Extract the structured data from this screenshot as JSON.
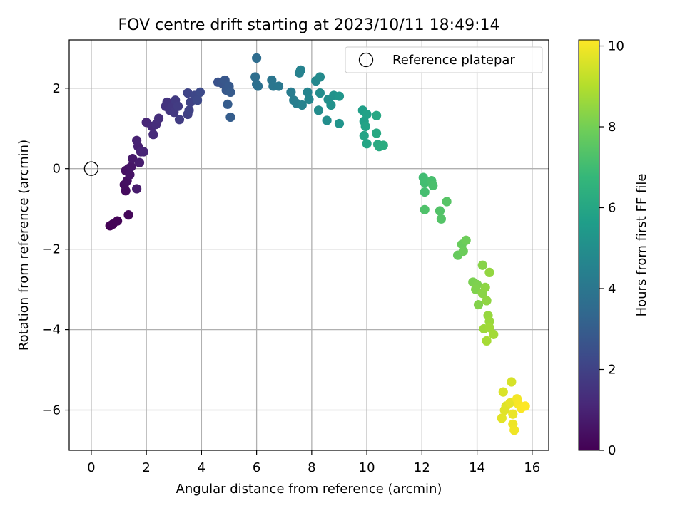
{
  "chart_data": {
    "type": "scatter",
    "title": "FOV centre drift starting at 2023/10/11 18:49:14",
    "xlabel": "Angular distance from reference (arcmin)",
    "ylabel": "Rotation from reference (arcmin)",
    "xlim": [
      -0.8,
      16.6
    ],
    "ylim": [
      -7.0,
      3.2
    ],
    "xticks": [
      0,
      2,
      4,
      6,
      8,
      10,
      12,
      14,
      16
    ],
    "yticks": [
      -6,
      -4,
      -2,
      0,
      2
    ],
    "grid": true,
    "legend": {
      "position": "top-right",
      "entries": [
        "Reference platepar"
      ]
    },
    "reference_point": {
      "x": 0,
      "y": 0,
      "label": "Reference platepar"
    },
    "colorbar": {
      "label": "Hours from first FF file",
      "colormap": "viridis",
      "range": [
        0,
        10.15
      ],
      "ticks": [
        0,
        2,
        4,
        6,
        8,
        10
      ]
    },
    "points": [
      {
        "x": 0.68,
        "y": -1.42,
        "c": 0.0
      },
      {
        "x": 0.78,
        "y": -1.38,
        "c": 0.05
      },
      {
        "x": 0.95,
        "y": -1.3,
        "c": 0.1
      },
      {
        "x": 1.35,
        "y": -1.15,
        "c": 0.2
      },
      {
        "x": 1.25,
        "y": -0.55,
        "c": 0.3
      },
      {
        "x": 1.2,
        "y": -0.4,
        "c": 0.35
      },
      {
        "x": 1.3,
        "y": -0.3,
        "c": 0.4
      },
      {
        "x": 1.25,
        "y": -0.05,
        "c": 0.45
      },
      {
        "x": 1.35,
        "y": 0.0,
        "c": 0.5
      },
      {
        "x": 1.4,
        "y": -0.15,
        "c": 0.55
      },
      {
        "x": 1.45,
        "y": 0.05,
        "c": 0.6
      },
      {
        "x": 1.5,
        "y": 0.25,
        "c": 0.7
      },
      {
        "x": 1.65,
        "y": -0.5,
        "c": 0.75
      },
      {
        "x": 1.75,
        "y": 0.15,
        "c": 0.8
      },
      {
        "x": 1.7,
        "y": 0.55,
        "c": 0.9
      },
      {
        "x": 1.65,
        "y": 0.7,
        "c": 0.95
      },
      {
        "x": 1.8,
        "y": 0.42,
        "c": 1.0
      },
      {
        "x": 1.9,
        "y": 0.42,
        "c": 1.05
      },
      {
        "x": 2.0,
        "y": 1.15,
        "c": 1.1
      },
      {
        "x": 2.2,
        "y": 1.05,
        "c": 1.2
      },
      {
        "x": 2.25,
        "y": 0.85,
        "c": 1.25
      },
      {
        "x": 2.35,
        "y": 1.1,
        "c": 1.3
      },
      {
        "x": 2.45,
        "y": 1.25,
        "c": 1.35
      },
      {
        "x": 2.7,
        "y": 1.55,
        "c": 1.5
      },
      {
        "x": 2.75,
        "y": 1.65,
        "c": 1.55
      },
      {
        "x": 2.85,
        "y": 1.45,
        "c": 1.6
      },
      {
        "x": 2.95,
        "y": 1.55,
        "c": 1.65
      },
      {
        "x": 3.0,
        "y": 1.4,
        "c": 1.7
      },
      {
        "x": 3.05,
        "y": 1.7,
        "c": 1.75
      },
      {
        "x": 3.15,
        "y": 1.55,
        "c": 1.8
      },
      {
        "x": 3.2,
        "y": 1.22,
        "c": 1.85
      },
      {
        "x": 3.5,
        "y": 1.35,
        "c": 1.95
      },
      {
        "x": 3.55,
        "y": 1.45,
        "c": 2.0
      },
      {
        "x": 3.6,
        "y": 1.65,
        "c": 2.05
      },
      {
        "x": 3.5,
        "y": 1.88,
        "c": 2.1
      },
      {
        "x": 3.75,
        "y": 1.82,
        "c": 2.2
      },
      {
        "x": 3.85,
        "y": 1.7,
        "c": 2.25
      },
      {
        "x": 3.95,
        "y": 1.9,
        "c": 2.3
      },
      {
        "x": 4.6,
        "y": 2.15,
        "c": 2.6
      },
      {
        "x": 4.75,
        "y": 2.12,
        "c": 2.7
      },
      {
        "x": 4.85,
        "y": 2.2,
        "c": 2.75
      },
      {
        "x": 4.9,
        "y": 1.95,
        "c": 2.8
      },
      {
        "x": 5.0,
        "y": 2.05,
        "c": 2.85
      },
      {
        "x": 5.05,
        "y": 1.9,
        "c": 2.9
      },
      {
        "x": 4.95,
        "y": 1.6,
        "c": 2.95
      },
      {
        "x": 5.05,
        "y": 1.28,
        "c": 3.0
      },
      {
        "x": 6.0,
        "y": 2.75,
        "c": 3.6
      },
      {
        "x": 5.95,
        "y": 2.28,
        "c": 3.65
      },
      {
        "x": 6.0,
        "y": 2.1,
        "c": 3.7
      },
      {
        "x": 6.05,
        "y": 2.05,
        "c": 3.75
      },
      {
        "x": 6.55,
        "y": 2.2,
        "c": 3.95
      },
      {
        "x": 6.6,
        "y": 2.05,
        "c": 4.0
      },
      {
        "x": 6.8,
        "y": 2.05,
        "c": 4.05
      },
      {
        "x": 7.25,
        "y": 1.9,
        "c": 4.25
      },
      {
        "x": 7.35,
        "y": 1.7,
        "c": 4.3
      },
      {
        "x": 7.45,
        "y": 1.62,
        "c": 4.35
      },
      {
        "x": 7.55,
        "y": 2.38,
        "c": 4.45
      },
      {
        "x": 7.6,
        "y": 2.45,
        "c": 4.5
      },
      {
        "x": 7.65,
        "y": 1.58,
        "c": 4.55
      },
      {
        "x": 7.85,
        "y": 1.9,
        "c": 4.6
      },
      {
        "x": 7.9,
        "y": 1.72,
        "c": 4.65
      },
      {
        "x": 8.15,
        "y": 2.18,
        "c": 4.75
      },
      {
        "x": 8.3,
        "y": 2.28,
        "c": 4.85
      },
      {
        "x": 8.25,
        "y": 1.45,
        "c": 4.9
      },
      {
        "x": 8.3,
        "y": 1.88,
        "c": 4.95
      },
      {
        "x": 8.55,
        "y": 1.2,
        "c": 5.0
      },
      {
        "x": 8.6,
        "y": 1.72,
        "c": 5.05
      },
      {
        "x": 8.7,
        "y": 1.58,
        "c": 5.1
      },
      {
        "x": 8.8,
        "y": 1.82,
        "c": 5.15
      },
      {
        "x": 9.0,
        "y": 1.12,
        "c": 5.25
      },
      {
        "x": 9.0,
        "y": 1.8,
        "c": 5.3
      },
      {
        "x": 9.85,
        "y": 1.45,
        "c": 5.7
      },
      {
        "x": 9.9,
        "y": 1.18,
        "c": 5.75
      },
      {
        "x": 10.0,
        "y": 1.35,
        "c": 5.8
      },
      {
        "x": 9.95,
        "y": 1.05,
        "c": 5.85
      },
      {
        "x": 9.9,
        "y": 0.82,
        "c": 5.9
      },
      {
        "x": 10.0,
        "y": 0.62,
        "c": 5.95
      },
      {
        "x": 10.35,
        "y": 1.32,
        "c": 6.05
      },
      {
        "x": 10.35,
        "y": 0.88,
        "c": 6.1
      },
      {
        "x": 10.4,
        "y": 0.6,
        "c": 6.15
      },
      {
        "x": 10.45,
        "y": 0.55,
        "c": 6.2
      },
      {
        "x": 10.6,
        "y": 0.58,
        "c": 6.25
      },
      {
        "x": 12.05,
        "y": -0.22,
        "c": 7.0
      },
      {
        "x": 12.1,
        "y": -0.35,
        "c": 7.05
      },
      {
        "x": 12.1,
        "y": -0.58,
        "c": 7.1
      },
      {
        "x": 12.35,
        "y": -0.3,
        "c": 7.15
      },
      {
        "x": 12.4,
        "y": -0.42,
        "c": 7.2
      },
      {
        "x": 12.1,
        "y": -1.02,
        "c": 7.3
      },
      {
        "x": 12.65,
        "y": -1.05,
        "c": 7.35
      },
      {
        "x": 12.7,
        "y": -1.25,
        "c": 7.4
      },
      {
        "x": 12.9,
        "y": -0.82,
        "c": 7.45
      },
      {
        "x": 13.3,
        "y": -2.15,
        "c": 7.75
      },
      {
        "x": 13.45,
        "y": -1.88,
        "c": 7.8
      },
      {
        "x": 13.5,
        "y": -2.05,
        "c": 7.85
      },
      {
        "x": 13.6,
        "y": -1.78,
        "c": 7.9
      },
      {
        "x": 13.85,
        "y": -2.82,
        "c": 8.1
      },
      {
        "x": 14.0,
        "y": -2.88,
        "c": 8.15
      },
      {
        "x": 13.95,
        "y": -3.0,
        "c": 8.2
      },
      {
        "x": 14.05,
        "y": -3.38,
        "c": 8.25
      },
      {
        "x": 14.2,
        "y": -2.4,
        "c": 8.3
      },
      {
        "x": 14.2,
        "y": -3.1,
        "c": 8.35
      },
      {
        "x": 14.3,
        "y": -2.95,
        "c": 8.4
      },
      {
        "x": 14.35,
        "y": -3.28,
        "c": 8.45
      },
      {
        "x": 14.45,
        "y": -2.58,
        "c": 8.5
      },
      {
        "x": 14.4,
        "y": -3.65,
        "c": 8.55
      },
      {
        "x": 14.45,
        "y": -3.8,
        "c": 8.6
      },
      {
        "x": 14.25,
        "y": -3.98,
        "c": 8.65
      },
      {
        "x": 14.45,
        "y": -3.95,
        "c": 8.7
      },
      {
        "x": 14.6,
        "y": -4.12,
        "c": 8.75
      },
      {
        "x": 14.35,
        "y": -4.28,
        "c": 8.8
      },
      {
        "x": 15.25,
        "y": -5.3,
        "c": 9.55
      },
      {
        "x": 14.95,
        "y": -5.55,
        "c": 9.6
      },
      {
        "x": 15.05,
        "y": -5.9,
        "c": 9.65
      },
      {
        "x": 15.0,
        "y": -6.0,
        "c": 9.7
      },
      {
        "x": 14.9,
        "y": -6.2,
        "c": 9.75
      },
      {
        "x": 15.2,
        "y": -5.82,
        "c": 9.8
      },
      {
        "x": 15.3,
        "y": -6.1,
        "c": 9.85
      },
      {
        "x": 15.3,
        "y": -6.35,
        "c": 9.9
      },
      {
        "x": 15.35,
        "y": -6.5,
        "c": 9.95
      },
      {
        "x": 15.45,
        "y": -5.72,
        "c": 10.0
      },
      {
        "x": 15.5,
        "y": -5.85,
        "c": 10.05
      },
      {
        "x": 15.6,
        "y": -5.95,
        "c": 10.1
      },
      {
        "x": 15.75,
        "y": -5.9,
        "c": 10.15
      }
    ]
  }
}
